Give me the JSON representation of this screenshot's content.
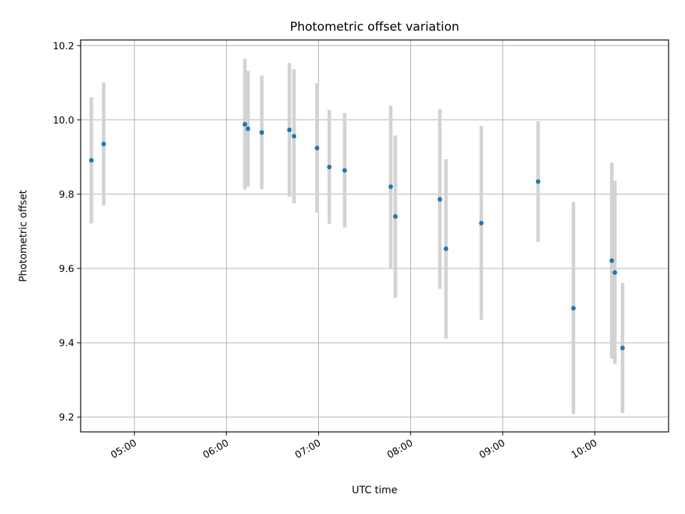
{
  "chart_data": {
    "type": "scatter",
    "title": "Photometric offset variation",
    "xlabel": "UTC time",
    "ylabel": "Photometric offset",
    "x_axis_type": "time",
    "xlim": [
      "04:25",
      "10:48"
    ],
    "ylim": [
      9.16,
      10.215
    ],
    "x_ticks": [
      "05:00",
      "06:00",
      "07:00",
      "08:00",
      "09:00",
      "10:00"
    ],
    "y_ticks": [
      "9.2",
      "9.4",
      "9.6",
      "9.8",
      "10.0",
      "10.2"
    ],
    "grid": true,
    "legend": "none",
    "colors": {
      "points": "#1f77b4",
      "errorbars": "#d3d3d3",
      "grid": "#b0b0b0"
    },
    "series": [
      {
        "marker": "dot",
        "points": [
          {
            "x": "04:32",
            "y": 9.891,
            "err_low": 9.721,
            "err_high": 10.061
          },
          {
            "x": "04:40",
            "y": 9.935,
            "err_low": 9.77,
            "err_high": 10.1
          },
          {
            "x": "06:12",
            "y": 9.988,
            "err_low": 9.813,
            "err_high": 10.164
          },
          {
            "x": "06:14",
            "y": 9.976,
            "err_low": 9.82,
            "err_high": 10.132
          },
          {
            "x": "06:23",
            "y": 9.966,
            "err_low": 9.813,
            "err_high": 10.119
          },
          {
            "x": "06:41",
            "y": 9.973,
            "err_low": 9.793,
            "err_high": 10.153
          },
          {
            "x": "06:44",
            "y": 9.956,
            "err_low": 9.776,
            "err_high": 10.136
          },
          {
            "x": "06:59",
            "y": 9.924,
            "err_low": 9.75,
            "err_high": 10.099
          },
          {
            "x": "07:07",
            "y": 9.873,
            "err_low": 9.72,
            "err_high": 10.027
          },
          {
            "x": "07:17",
            "y": 9.864,
            "err_low": 9.71,
            "err_high": 10.018
          },
          {
            "x": "07:47",
            "y": 9.82,
            "err_low": 9.6,
            "err_high": 10.038
          },
          {
            "x": "07:50",
            "y": 9.74,
            "err_low": 9.521,
            "err_high": 9.958
          },
          {
            "x": "08:19",
            "y": 9.786,
            "err_low": 9.545,
            "err_high": 10.029
          },
          {
            "x": "08:23",
            "y": 9.653,
            "err_low": 9.411,
            "err_high": 9.894
          },
          {
            "x": "08:46",
            "y": 9.722,
            "err_low": 9.462,
            "err_high": 9.984
          },
          {
            "x": "09:23",
            "y": 9.834,
            "err_low": 9.671,
            "err_high": 9.996
          },
          {
            "x": "09:46",
            "y": 9.493,
            "err_low": 9.208,
            "err_high": 9.779
          },
          {
            "x": "10:11",
            "y": 9.621,
            "err_low": 9.357,
            "err_high": 9.885
          },
          {
            "x": "10:13",
            "y": 9.589,
            "err_low": 9.343,
            "err_high": 9.836
          },
          {
            "x": "10:18",
            "y": 9.386,
            "err_low": 9.211,
            "err_high": 9.561
          }
        ]
      }
    ]
  }
}
